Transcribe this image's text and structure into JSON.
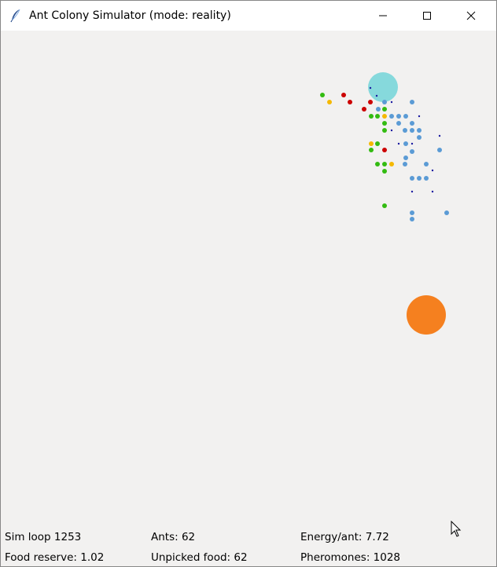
{
  "window": {
    "title": "Ant Colony Simulator (mode: reality)",
    "icon": "feather-icon",
    "controls": [
      "minimize-icon",
      "maximize-icon",
      "close-icon"
    ]
  },
  "simulation": {
    "nest": {
      "color": "#86d9dc"
    },
    "food_source": {
      "color": "#f5801f"
    },
    "ant_colors": {
      "foraging": "#5b9bd5",
      "returning": "#33bb11",
      "carrying": "#cc0000",
      "scout": "#f5b800"
    },
    "pheromone_color": "#1a1aa0"
  },
  "stats": {
    "sim_loop": "Sim loop 1253",
    "ants": "Ants: 62",
    "energy_per_ant": "Energy/ant: 7.72",
    "food_reserve": "Food reserve: 1.02",
    "unpicked_food": "Unpicked food: 62",
    "pheromones": "Pheromones: 1028"
  },
  "cursor": {
    "icon": "mouse-pointer-icon"
  }
}
